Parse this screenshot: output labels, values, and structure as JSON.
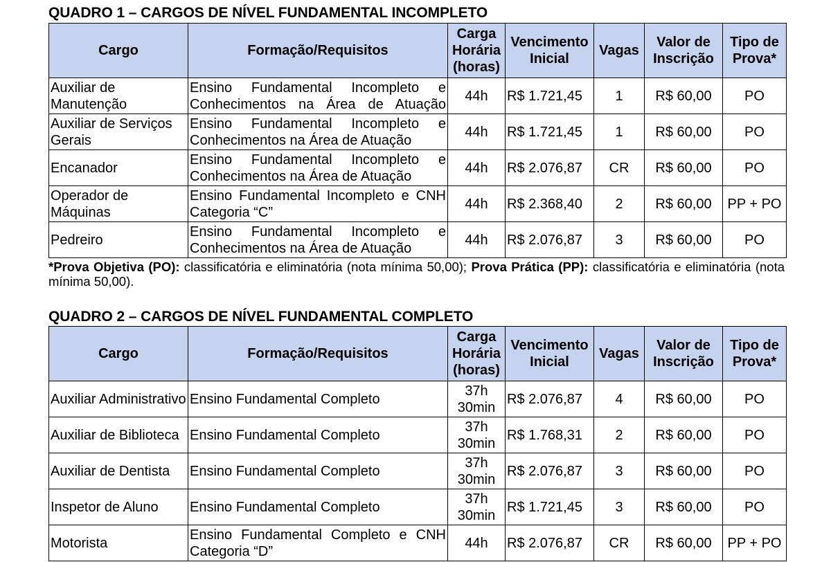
{
  "quadro1": {
    "title": "QUADRO 1 – CARGOS DE NÍVEL FUNDAMENTAL INCOMPLETO",
    "headers": {
      "cargo": "Cargo",
      "formacao": "Formação/Requisitos",
      "carga": "Carga Horária (horas)",
      "vencimento": "Vencimento Inicial",
      "vagas": "Vagas",
      "inscricao": "Valor de Inscrição",
      "tipo": "Tipo de Prova*"
    },
    "rows": [
      {
        "cargo": "Auxiliar de Manutenção",
        "formacao": "Ensino Fundamental Incompleto e Conhecimentos na Área de Atuação",
        "carga": "44h",
        "vencimento": "R$ 1.721,45",
        "vagas": "1",
        "inscricao": "R$ 60,00",
        "tipo": "PO"
      },
      {
        "cargo": "Auxiliar de Serviços Gerais",
        "formacao": "Ensino Fundamental Incompleto e Conhecimentos na Área de Atuação",
        "carga": "44h",
        "vencimento": "R$ 1.721,45",
        "vagas": "1",
        "inscricao": "R$ 60,00",
        "tipo": "PO"
      },
      {
        "cargo": "Encanador",
        "formacao": "Ensino Fundamental Incompleto e Conhecimentos na Área de Atuação",
        "carga": "44h",
        "vencimento": "R$ 2.076,87",
        "vagas": "CR",
        "inscricao": "R$ 60,00",
        "tipo": "PO"
      },
      {
        "cargo": "Operador de Máquinas",
        "formacao": "Ensino Fundamental Incompleto e CNH Categoria “C”",
        "carga": "44h",
        "vencimento": "R$ 2.368,40",
        "vagas": "2",
        "inscricao": "R$ 60,00",
        "tipo": "PP + PO"
      },
      {
        "cargo": "Pedreiro",
        "formacao": "Ensino Fundamental Incompleto e Conhecimentos na Área de Atuação",
        "carga": "44h",
        "vencimento": "R$ 2.076,87",
        "vagas": "3",
        "inscricao": "R$ 60,00",
        "tipo": "PO"
      }
    ],
    "note": {
      "po_label": "*Prova Objetiva (PO):",
      "po_text": " classificatória e eliminatória (nota mínima 50,00); ",
      "pp_label": "Prova Prática (PP):",
      "pp_text": " classificatória e eliminatória (nota mínima 50,00)."
    }
  },
  "quadro2": {
    "title": "QUADRO 2 – CARGOS DE NÍVEL FUNDAMENTAL COMPLETO",
    "headers": {
      "cargo": "Cargo",
      "formacao": "Formação/Requisitos",
      "carga": "Carga Horária (horas)",
      "vencimento": "Vencimento Inicial",
      "vagas": "Vagas",
      "inscricao": "Valor de Inscrição",
      "tipo": "Tipo de Prova*"
    },
    "rows": [
      {
        "cargo": "Auxiliar Administrativo",
        "formacao": "Ensino Fundamental Completo",
        "carga": "37h 30min",
        "vencimento": "R$ 2.076,87",
        "vagas": "4",
        "inscricao": "R$ 60,00",
        "tipo": "PO"
      },
      {
        "cargo": "Auxiliar de Biblioteca",
        "formacao": "Ensino Fundamental Completo",
        "carga": "37h 30min",
        "vencimento": "R$ 1.768,31",
        "vagas": "2",
        "inscricao": "R$ 60,00",
        "tipo": "PO"
      },
      {
        "cargo": "Auxiliar de Dentista",
        "formacao": "Ensino Fundamental Completo",
        "carga": "37h 30min",
        "vencimento": "R$ 2.076,87",
        "vagas": "3",
        "inscricao": "R$ 60,00",
        "tipo": "PO"
      },
      {
        "cargo": "Inspetor de Aluno",
        "formacao": "Ensino Fundamental Completo",
        "carga": "37h 30min",
        "vencimento": "R$ 1.721,45",
        "vagas": "3",
        "inscricao": "R$ 60,00",
        "tipo": "PO"
      },
      {
        "cargo": "Motorista",
        "formacao": "Ensino Fundamental Completo e CNH Categoria “D”",
        "carga": "44h",
        "vencimento": "R$ 2.076,87",
        "vagas": "CR",
        "inscricao": "R$ 60,00",
        "tipo": "PP + PO"
      }
    ]
  }
}
